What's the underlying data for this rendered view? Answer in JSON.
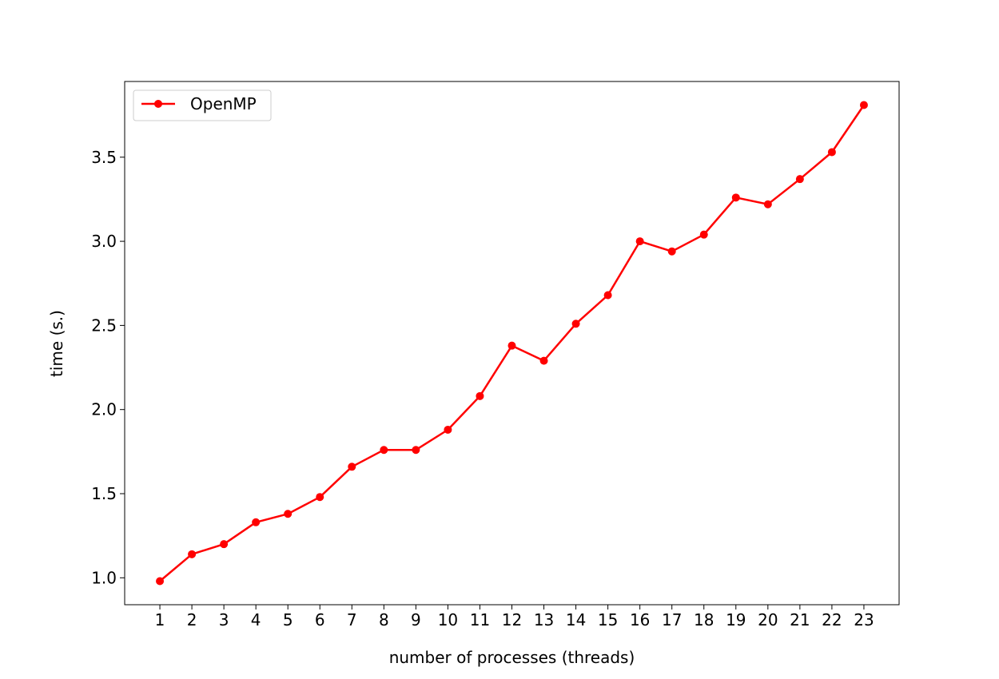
{
  "chart_data": {
    "type": "line",
    "title": "",
    "xlabel": "number of processes (threads)",
    "ylabel": "time (s.)",
    "x": [
      1,
      2,
      3,
      4,
      5,
      6,
      7,
      8,
      9,
      10,
      11,
      12,
      13,
      14,
      15,
      16,
      17,
      18,
      19,
      20,
      21,
      22,
      23
    ],
    "series": [
      {
        "name": "OpenMP",
        "color": "#ff0000",
        "marker": "circle",
        "values": [
          0.98,
          1.14,
          1.2,
          1.33,
          1.38,
          1.48,
          1.66,
          1.76,
          1.76,
          1.88,
          2.08,
          2.38,
          2.29,
          2.51,
          2.68,
          3.0,
          2.94,
          3.04,
          3.26,
          3.22,
          3.37,
          3.53,
          3.81
        ]
      }
    ],
    "xticks": [
      "1",
      "2",
      "3",
      "4",
      "5",
      "6",
      "7",
      "8",
      "9",
      "10",
      "11",
      "12",
      "13",
      "14",
      "15",
      "16",
      "17",
      "18",
      "19",
      "20",
      "21",
      "22",
      "23"
    ],
    "yticks": [
      "1.0",
      "1.5",
      "2.0",
      "2.5",
      "3.0",
      "3.5"
    ],
    "ytick_values": [
      1.0,
      1.5,
      2.0,
      2.5,
      3.0,
      3.5
    ],
    "xlim": [
      -0.1,
      24.1
    ],
    "ylim": [
      0.84,
      3.95
    ],
    "grid": false,
    "legend_position": "upper-left"
  }
}
